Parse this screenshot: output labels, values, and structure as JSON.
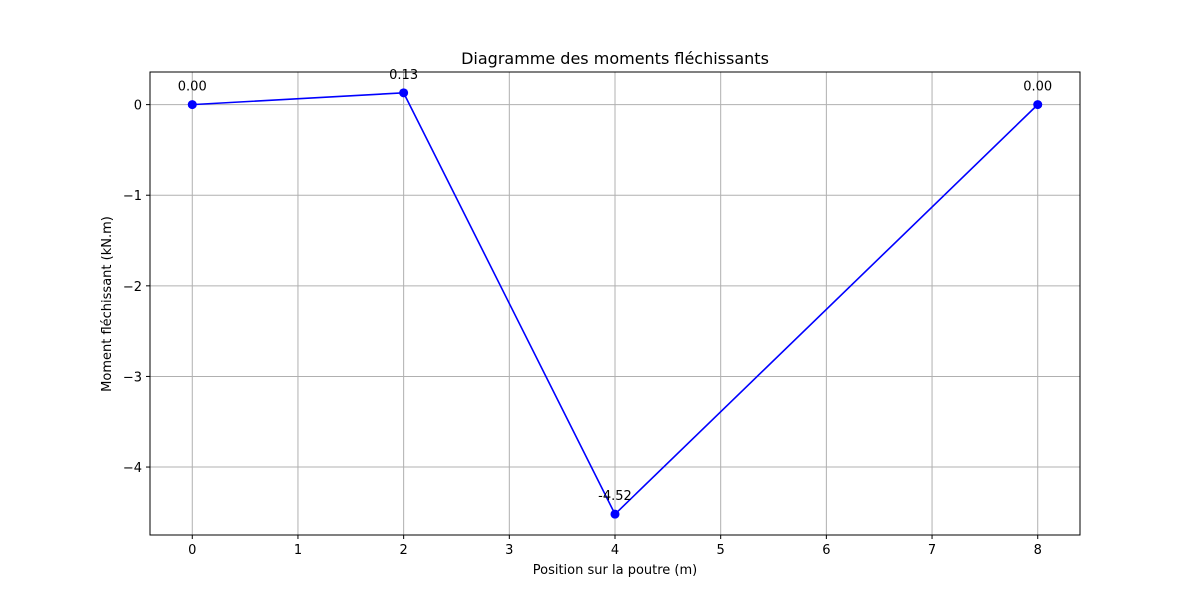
{
  "chart_data": {
    "type": "line",
    "title": "Diagramme des moments fléchissants",
    "xlabel": "Position sur la poutre (m)",
    "ylabel": "Moment fléchissant (kN.m)",
    "xlim": [
      -0.4,
      8.4
    ],
    "ylim": [
      -4.75,
      0.36
    ],
    "xticks": [
      0,
      1,
      2,
      3,
      4,
      5,
      6,
      7,
      8
    ],
    "xtick_labels": [
      "0",
      "1",
      "2",
      "3",
      "4",
      "5",
      "6",
      "7",
      "8"
    ],
    "yticks": [
      0,
      -1,
      -2,
      -3,
      -4
    ],
    "ytick_labels": [
      "0",
      "−1",
      "−2",
      "−3",
      "−4"
    ],
    "grid": true,
    "series": [
      {
        "color": "#0000ff",
        "marker": "circle",
        "x": [
          0,
          2,
          4,
          8
        ],
        "y": [
          0.0,
          0.13,
          -4.52,
          0.0
        ],
        "labels": [
          "0.00",
          "0.13",
          "-4.52",
          "0.00"
        ]
      }
    ]
  }
}
